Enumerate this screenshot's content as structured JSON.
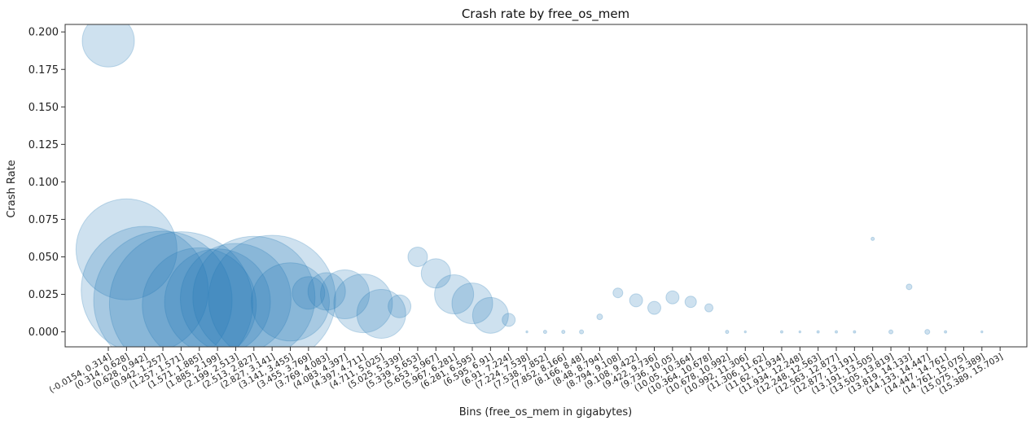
{
  "chart_data": {
    "type": "scatter",
    "title": "Crash rate by free_os_mem",
    "xlabel": "Bins (free_os_mem in gigabytes)",
    "ylabel": "Crash Rate",
    "ylim": [
      -0.01,
      0.205
    ],
    "yticks": [
      "0.000",
      "0.025",
      "0.050",
      "0.075",
      "0.100",
      "0.125",
      "0.150",
      "0.175",
      "0.200"
    ],
    "ytick_values": [
      0,
      0.025,
      0.05,
      0.075,
      0.1,
      0.125,
      0.15,
      0.175,
      0.2
    ],
    "grid": false,
    "legend": "none",
    "color": "#1f77b4",
    "categories": [
      "(-0.0154, 0.314]",
      "(0.314, 0.628]",
      "(0.628, 0.942]",
      "(0.942, 1.257]",
      "(1.257, 1.571]",
      "(1.571, 1.885]",
      "(1.885, 2.199]",
      "(2.199, 2.513]",
      "(2.513, 2.827]",
      "(2.827, 3.141]",
      "(3.141, 3.455]",
      "(3.455, 3.769]",
      "(3.769, 4.083]",
      "(4.083, 4.397]",
      "(4.397, 4.711]",
      "(4.711, 5.025]",
      "(5.025, 5.339]",
      "(5.339, 5.653]",
      "(5.653, 5.967]",
      "(5.967, 6.281]",
      "(6.281, 6.595]",
      "(6.595, 6.91]",
      "(6.91, 7.224]",
      "(7.224, 7.538]",
      "(7.538, 7.852]",
      "(7.852, 8.166]",
      "(8.166, 8.48]",
      "(8.48, 8.794]",
      "(8.794, 9.108]",
      "(9.108, 9.422]",
      "(9.422, 9.736]",
      "(9.736, 10.05]",
      "(10.05, 10.364]",
      "(10.364, 10.678]",
      "(10.678, 10.992]",
      "(10.992, 11.306]",
      "(11.306, 11.62]",
      "(11.62, 11.934]",
      "(11.934, 12.248]",
      "(12.248, 12.563]",
      "(12.563, 12.877]",
      "(12.877, 13.191]",
      "(13.191, 13.505]",
      "(13.505, 13.819]",
      "(13.819, 14.133]",
      "(14.133, 14.447]",
      "(14.447, 14.761]",
      "(14.761, 15.075]",
      "(15.075, 15.389]",
      "(15.389, 15.703]"
    ],
    "points": [
      {
        "x": 0,
        "y": 0.194,
        "size": 32
      },
      {
        "x": 1,
        "y": 0.055,
        "size": 62
      },
      {
        "x": 2,
        "y": 0.028,
        "size": 78
      },
      {
        "x": 3,
        "y": 0.021,
        "size": 85
      },
      {
        "x": 4,
        "y": 0.019,
        "size": 88
      },
      {
        "x": 5,
        "y": 0.018,
        "size": 70
      },
      {
        "x": 6,
        "y": 0.02,
        "size": 65
      },
      {
        "x": 7,
        "y": 0.022,
        "size": 68
      },
      {
        "x": 8,
        "y": 0.023,
        "size": 75
      },
      {
        "x": 9,
        "y": 0.022,
        "size": 78
      },
      {
        "x": 10,
        "y": 0.02,
        "size": 48
      },
      {
        "x": 11,
        "y": 0.026,
        "size": 20
      },
      {
        "x": 12,
        "y": 0.027,
        "size": 23
      },
      {
        "x": 13,
        "y": 0.025,
        "size": 30
      },
      {
        "x": 14,
        "y": 0.019,
        "size": 36
      },
      {
        "x": 15,
        "y": 0.012,
        "size": 30
      },
      {
        "x": 16,
        "y": 0.017,
        "size": 14
      },
      {
        "x": 17,
        "y": 0.05,
        "size": 12
      },
      {
        "x": 18,
        "y": 0.039,
        "size": 18
      },
      {
        "x": 19,
        "y": 0.025,
        "size": 24
      },
      {
        "x": 20,
        "y": 0.019,
        "size": 25
      },
      {
        "x": 21,
        "y": 0.011,
        "size": 22
      },
      {
        "x": 22,
        "y": 0.008,
        "size": 8
      },
      {
        "x": 23,
        "y": 0.0,
        "size": 1.2
      },
      {
        "x": 24,
        "y": 0.0,
        "size": 2
      },
      {
        "x": 25,
        "y": 0.0,
        "size": 2
      },
      {
        "x": 26,
        "y": 0.0,
        "size": 2.5
      },
      {
        "x": 27,
        "y": 0.01,
        "size": 3.5
      },
      {
        "x": 28,
        "y": 0.026,
        "size": 6
      },
      {
        "x": 29,
        "y": 0.021,
        "size": 8
      },
      {
        "x": 30,
        "y": 0.016,
        "size": 8
      },
      {
        "x": 31,
        "y": 0.023,
        "size": 8
      },
      {
        "x": 32,
        "y": 0.02,
        "size": 7
      },
      {
        "x": 33,
        "y": 0.016,
        "size": 5
      },
      {
        "x": 34,
        "y": 0.0,
        "size": 2
      },
      {
        "x": 35,
        "y": 0.0,
        "size": 1.2
      },
      {
        "x": 36,
        "y": null,
        "size": 0
      },
      {
        "x": 37,
        "y": 0.0,
        "size": 1.5
      },
      {
        "x": 38,
        "y": 0.0,
        "size": 1.2
      },
      {
        "x": 39,
        "y": 0.0,
        "size": 1.5
      },
      {
        "x": 40,
        "y": 0.0,
        "size": 1.5
      },
      {
        "x": 41,
        "y": 0.0,
        "size": 1.5
      },
      {
        "x": 42,
        "y": 0.062,
        "size": 2
      },
      {
        "x": 43,
        "y": 0.0,
        "size": 2.5
      },
      {
        "x": 44,
        "y": 0.03,
        "size": 3.5
      },
      {
        "x": 45,
        "y": 0.0,
        "size": 3
      },
      {
        "x": 46,
        "y": 0.0,
        "size": 1.5
      },
      {
        "x": 47,
        "y": null,
        "size": 0
      },
      {
        "x": 48,
        "y": 0.0,
        "size": 1.2
      },
      {
        "x": 49,
        "y": null,
        "size": 0
      }
    ]
  }
}
